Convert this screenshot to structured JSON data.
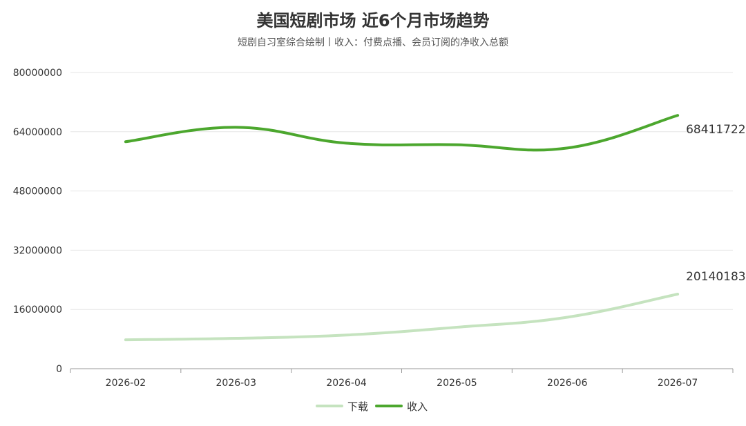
{
  "chart_data": {
    "type": "line",
    "title": "美国短剧市场 近6个月市场趋势",
    "subtitle": "短剧自习室综合绘制丨收入：付费点播、会员订阅的净收入总额",
    "categories": [
      "2026-02",
      "2026-03",
      "2026-04",
      "2026-05",
      "2026-06",
      "2026-07"
    ],
    "ylim": [
      0,
      80000000
    ],
    "yticks": [
      "0",
      "16000000",
      "32000000",
      "48000000",
      "64000000",
      "80000000"
    ],
    "grid": true,
    "legend_position": "bottom",
    "series": [
      {
        "name": "下载",
        "color": "#c5e3bf",
        "values": [
          7800000,
          8200000,
          9100000,
          11200000,
          13900000,
          20140183
        ],
        "end_label": "20140183"
      },
      {
        "name": "收入",
        "color": "#4ca72e",
        "values": [
          61300000,
          65200000,
          60900000,
          60500000,
          59600000,
          68411722
        ],
        "end_label": "68411722"
      }
    ]
  }
}
